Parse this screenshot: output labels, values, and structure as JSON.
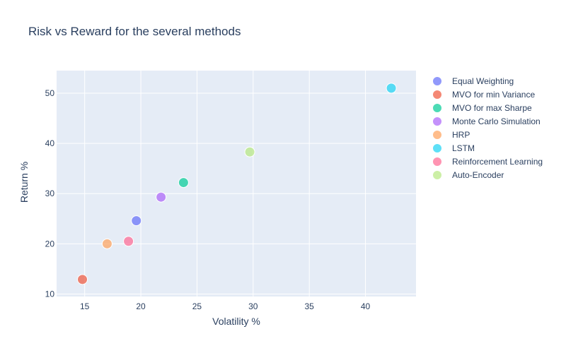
{
  "chart_data": {
    "type": "scatter",
    "title": "Risk vs Reward for the several methods",
    "xlabel": "Volatility %",
    "ylabel": "Return %",
    "xlim": [
      12.5,
      44.5
    ],
    "ylim": [
      9.5,
      54.5
    ],
    "x_ticks": [
      15,
      20,
      25,
      30,
      35,
      40
    ],
    "y_ticks": [
      10,
      20,
      30,
      40,
      50
    ],
    "grid": true,
    "legend_position": "right",
    "series": [
      {
        "name": "Equal Weighting",
        "color": "#636efa",
        "x": [
          19.6
        ],
        "y": [
          24.6
        ]
      },
      {
        "name": "MVO for min Variance",
        "color": "#ef553b",
        "x": [
          14.8
        ],
        "y": [
          12.9
        ]
      },
      {
        "name": "MVO for max Sharpe",
        "color": "#00cc96",
        "x": [
          23.8
        ],
        "y": [
          32.2
        ]
      },
      {
        "name": "Monte Carlo Simulation",
        "color": "#ab63fa",
        "x": [
          21.8
        ],
        "y": [
          29.3
        ]
      },
      {
        "name": "HRP",
        "color": "#ffa15a",
        "x": [
          17.0
        ],
        "y": [
          20.0
        ]
      },
      {
        "name": "LSTM",
        "color": "#19d3f3",
        "x": [
          42.3
        ],
        "y": [
          51.0
        ]
      },
      {
        "name": "Reinforcement Learning",
        "color": "#ff6692",
        "x": [
          18.9
        ],
        "y": [
          20.5
        ]
      },
      {
        "name": "Auto-Encoder",
        "color": "#b6e880",
        "x": [
          29.7
        ],
        "y": [
          38.3
        ]
      }
    ]
  }
}
